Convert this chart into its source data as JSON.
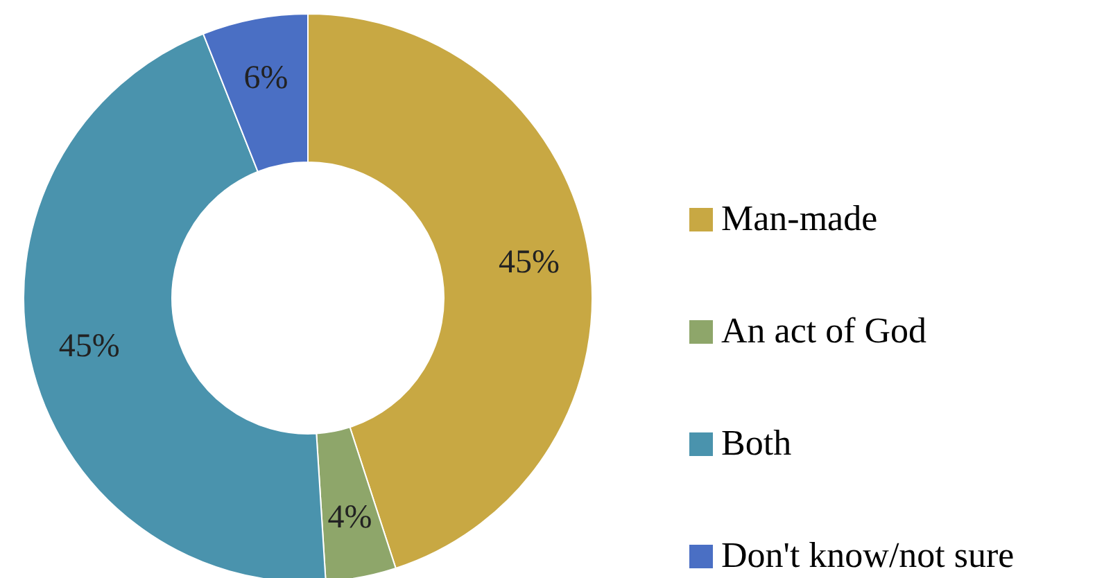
{
  "chart_data": {
    "type": "donut",
    "categories": [
      "Man-made",
      "An act of God",
      "Both",
      "Don't know/not sure"
    ],
    "values": [
      45,
      4,
      45,
      6
    ],
    "value_labels": [
      "45%",
      "4%",
      "45%",
      "6%"
    ],
    "colors": [
      "#c8a843",
      "#8ea66a",
      "#4a93ad",
      "#4a6fc4"
    ],
    "legend": "right"
  }
}
